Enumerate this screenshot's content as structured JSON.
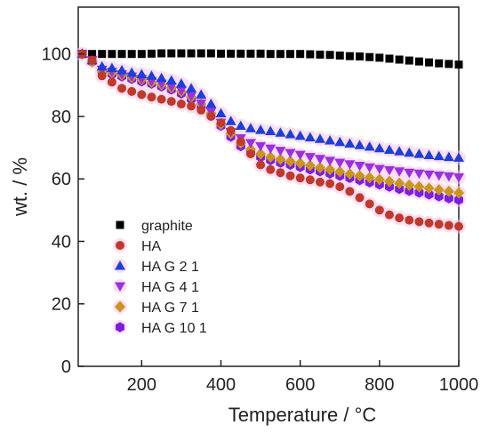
{
  "chart_data": {
    "type": "scatter",
    "xlabel": "Temperature / °C",
    "ylabel": "wt. / %",
    "xlim": [
      40,
      1000
    ],
    "ylim": [
      0,
      115
    ],
    "x_ticks": [
      "200",
      "400",
      "600",
      "800",
      "1000"
    ],
    "y_ticks": [
      "0",
      "20",
      "40",
      "60",
      "80",
      "100"
    ],
    "legend_position": "lower-left",
    "series": [
      {
        "name": "graphite",
        "marker": "square",
        "color": "#000000",
        "x": [
          50,
          75,
          100,
          125,
          150,
          175,
          200,
          225,
          250,
          275,
          300,
          325,
          350,
          375,
          400,
          425,
          450,
          475,
          500,
          525,
          550,
          575,
          600,
          625,
          650,
          675,
          700,
          725,
          750,
          775,
          800,
          825,
          850,
          875,
          900,
          925,
          950,
          975,
          1000
        ],
        "y": [
          100,
          100,
          100,
          100,
          100,
          100,
          100,
          100.1,
          100.2,
          100.2,
          100.2,
          100.2,
          100.2,
          100.2,
          100.1,
          100.1,
          100.1,
          100.1,
          100.1,
          100,
          100,
          100,
          100,
          99.9,
          99.8,
          99.7,
          99.5,
          99.3,
          99.2,
          99,
          98.8,
          98.5,
          98.2,
          97.9,
          97.6,
          97.3,
          97,
          96.8,
          96.6
        ]
      },
      {
        "name": "HA",
        "marker": "circle",
        "color": "#c0392b",
        "x": [
          50,
          75,
          100,
          125,
          150,
          175,
          200,
          225,
          250,
          275,
          300,
          325,
          350,
          375,
          400,
          425,
          450,
          475,
          500,
          525,
          550,
          575,
          600,
          625,
          650,
          675,
          700,
          725,
          750,
          775,
          800,
          825,
          850,
          875,
          900,
          925,
          950,
          975,
          1000
        ],
        "y": [
          100,
          98,
          93,
          91,
          89,
          88,
          87,
          86.2,
          85.5,
          84.8,
          84,
          83.3,
          82,
          80,
          78,
          75.5,
          72,
          68,
          64.5,
          63,
          62,
          61,
          60.3,
          59.7,
          59,
          58.5,
          57.5,
          56,
          54,
          52,
          50,
          48.5,
          47.5,
          46.8,
          46.3,
          45.9,
          45.5,
          45.1,
          44.8
        ]
      },
      {
        "name": "HA G 2 1",
        "marker": "triangle-up",
        "color": "#1e3fd6",
        "x": [
          50,
          75,
          100,
          125,
          150,
          175,
          200,
          225,
          250,
          275,
          300,
          325,
          350,
          375,
          400,
          425,
          450,
          475,
          500,
          525,
          550,
          575,
          600,
          625,
          650,
          675,
          700,
          725,
          750,
          775,
          800,
          825,
          850,
          875,
          900,
          925,
          950,
          975,
          1000
        ],
        "y": [
          100,
          98,
          96,
          95.5,
          94.8,
          94,
          93.5,
          93,
          92.3,
          91.5,
          90.5,
          89,
          87,
          84,
          81,
          78.5,
          77,
          76.2,
          75.7,
          75.3,
          74.8,
          74.3,
          73.8,
          73.3,
          72.8,
          72.3,
          71.8,
          71.3,
          70.8,
          70.3,
          69.8,
          69.3,
          68.8,
          68.4,
          68,
          67.6,
          67.3,
          67,
          66.8
        ]
      },
      {
        "name": "HA G 4 1",
        "marker": "triangle-down",
        "color": "#9b30e0",
        "x": [
          50,
          75,
          100,
          125,
          150,
          175,
          200,
          225,
          250,
          275,
          300,
          325,
          350,
          375,
          400,
          425,
          450,
          475,
          500,
          525,
          550,
          575,
          600,
          625,
          650,
          675,
          700,
          725,
          750,
          775,
          800,
          825,
          850,
          875,
          900,
          925,
          950,
          975,
          1000
        ],
        "y": [
          100,
          98,
          95,
          94.3,
          93.5,
          92.8,
          92,
          91.3,
          90.5,
          89.5,
          88.3,
          86.5,
          84.2,
          81.5,
          78,
          75,
          73,
          71.5,
          70.5,
          69.7,
          69,
          68.3,
          67.7,
          67,
          66.4,
          65.8,
          65.2,
          64.7,
          64.2,
          63.7,
          63.2,
          62.8,
          62.4,
          62,
          61.7,
          61.4,
          61.1,
          60.8,
          60.5
        ]
      },
      {
        "name": "HA G 7 1",
        "marker": "diamond",
        "color": "#c8961e",
        "x": [
          50,
          75,
          100,
          125,
          150,
          175,
          200,
          225,
          250,
          275,
          300,
          325,
          350,
          375,
          400,
          425,
          450,
          475,
          500,
          525,
          550,
          575,
          600,
          625,
          650,
          675,
          700,
          725,
          750,
          775,
          800,
          825,
          850,
          875,
          900,
          925,
          950,
          975,
          1000
        ],
        "y": [
          100,
          97.5,
          94.5,
          94,
          93.3,
          92.5,
          91.8,
          91,
          90.2,
          89.2,
          88,
          86.2,
          84,
          81,
          77.5,
          74.5,
          71.5,
          69.5,
          68,
          67,
          66.3,
          65.6,
          65,
          64.3,
          63.6,
          63,
          62.3,
          61.6,
          61,
          60.4,
          59.8,
          59.2,
          58.6,
          58,
          57.5,
          57,
          56.5,
          56,
          55.5
        ]
      },
      {
        "name": "HA G 10 1",
        "marker": "hexagon",
        "color": "#7b1fe0",
        "x": [
          50,
          75,
          100,
          125,
          150,
          175,
          200,
          225,
          250,
          275,
          300,
          325,
          350,
          375,
          400,
          425,
          450,
          475,
          500,
          525,
          550,
          575,
          600,
          625,
          650,
          675,
          700,
          725,
          750,
          775,
          800,
          825,
          850,
          875,
          900,
          925,
          950,
          975,
          1000
        ],
        "y": [
          100,
          97.5,
          94.5,
          93.5,
          92.8,
          92,
          91.2,
          90.5,
          89.6,
          88.6,
          87.3,
          85.5,
          83.3,
          80.5,
          77,
          73.5,
          70.5,
          68.5,
          67,
          66,
          65.2,
          64.5,
          63.8,
          63,
          62.4,
          61.7,
          61,
          60.3,
          59.6,
          58.9,
          58.2,
          57.5,
          56.8,
          56.2,
          55.6,
          55,
          54.4,
          53.8,
          53.3
        ]
      }
    ]
  }
}
